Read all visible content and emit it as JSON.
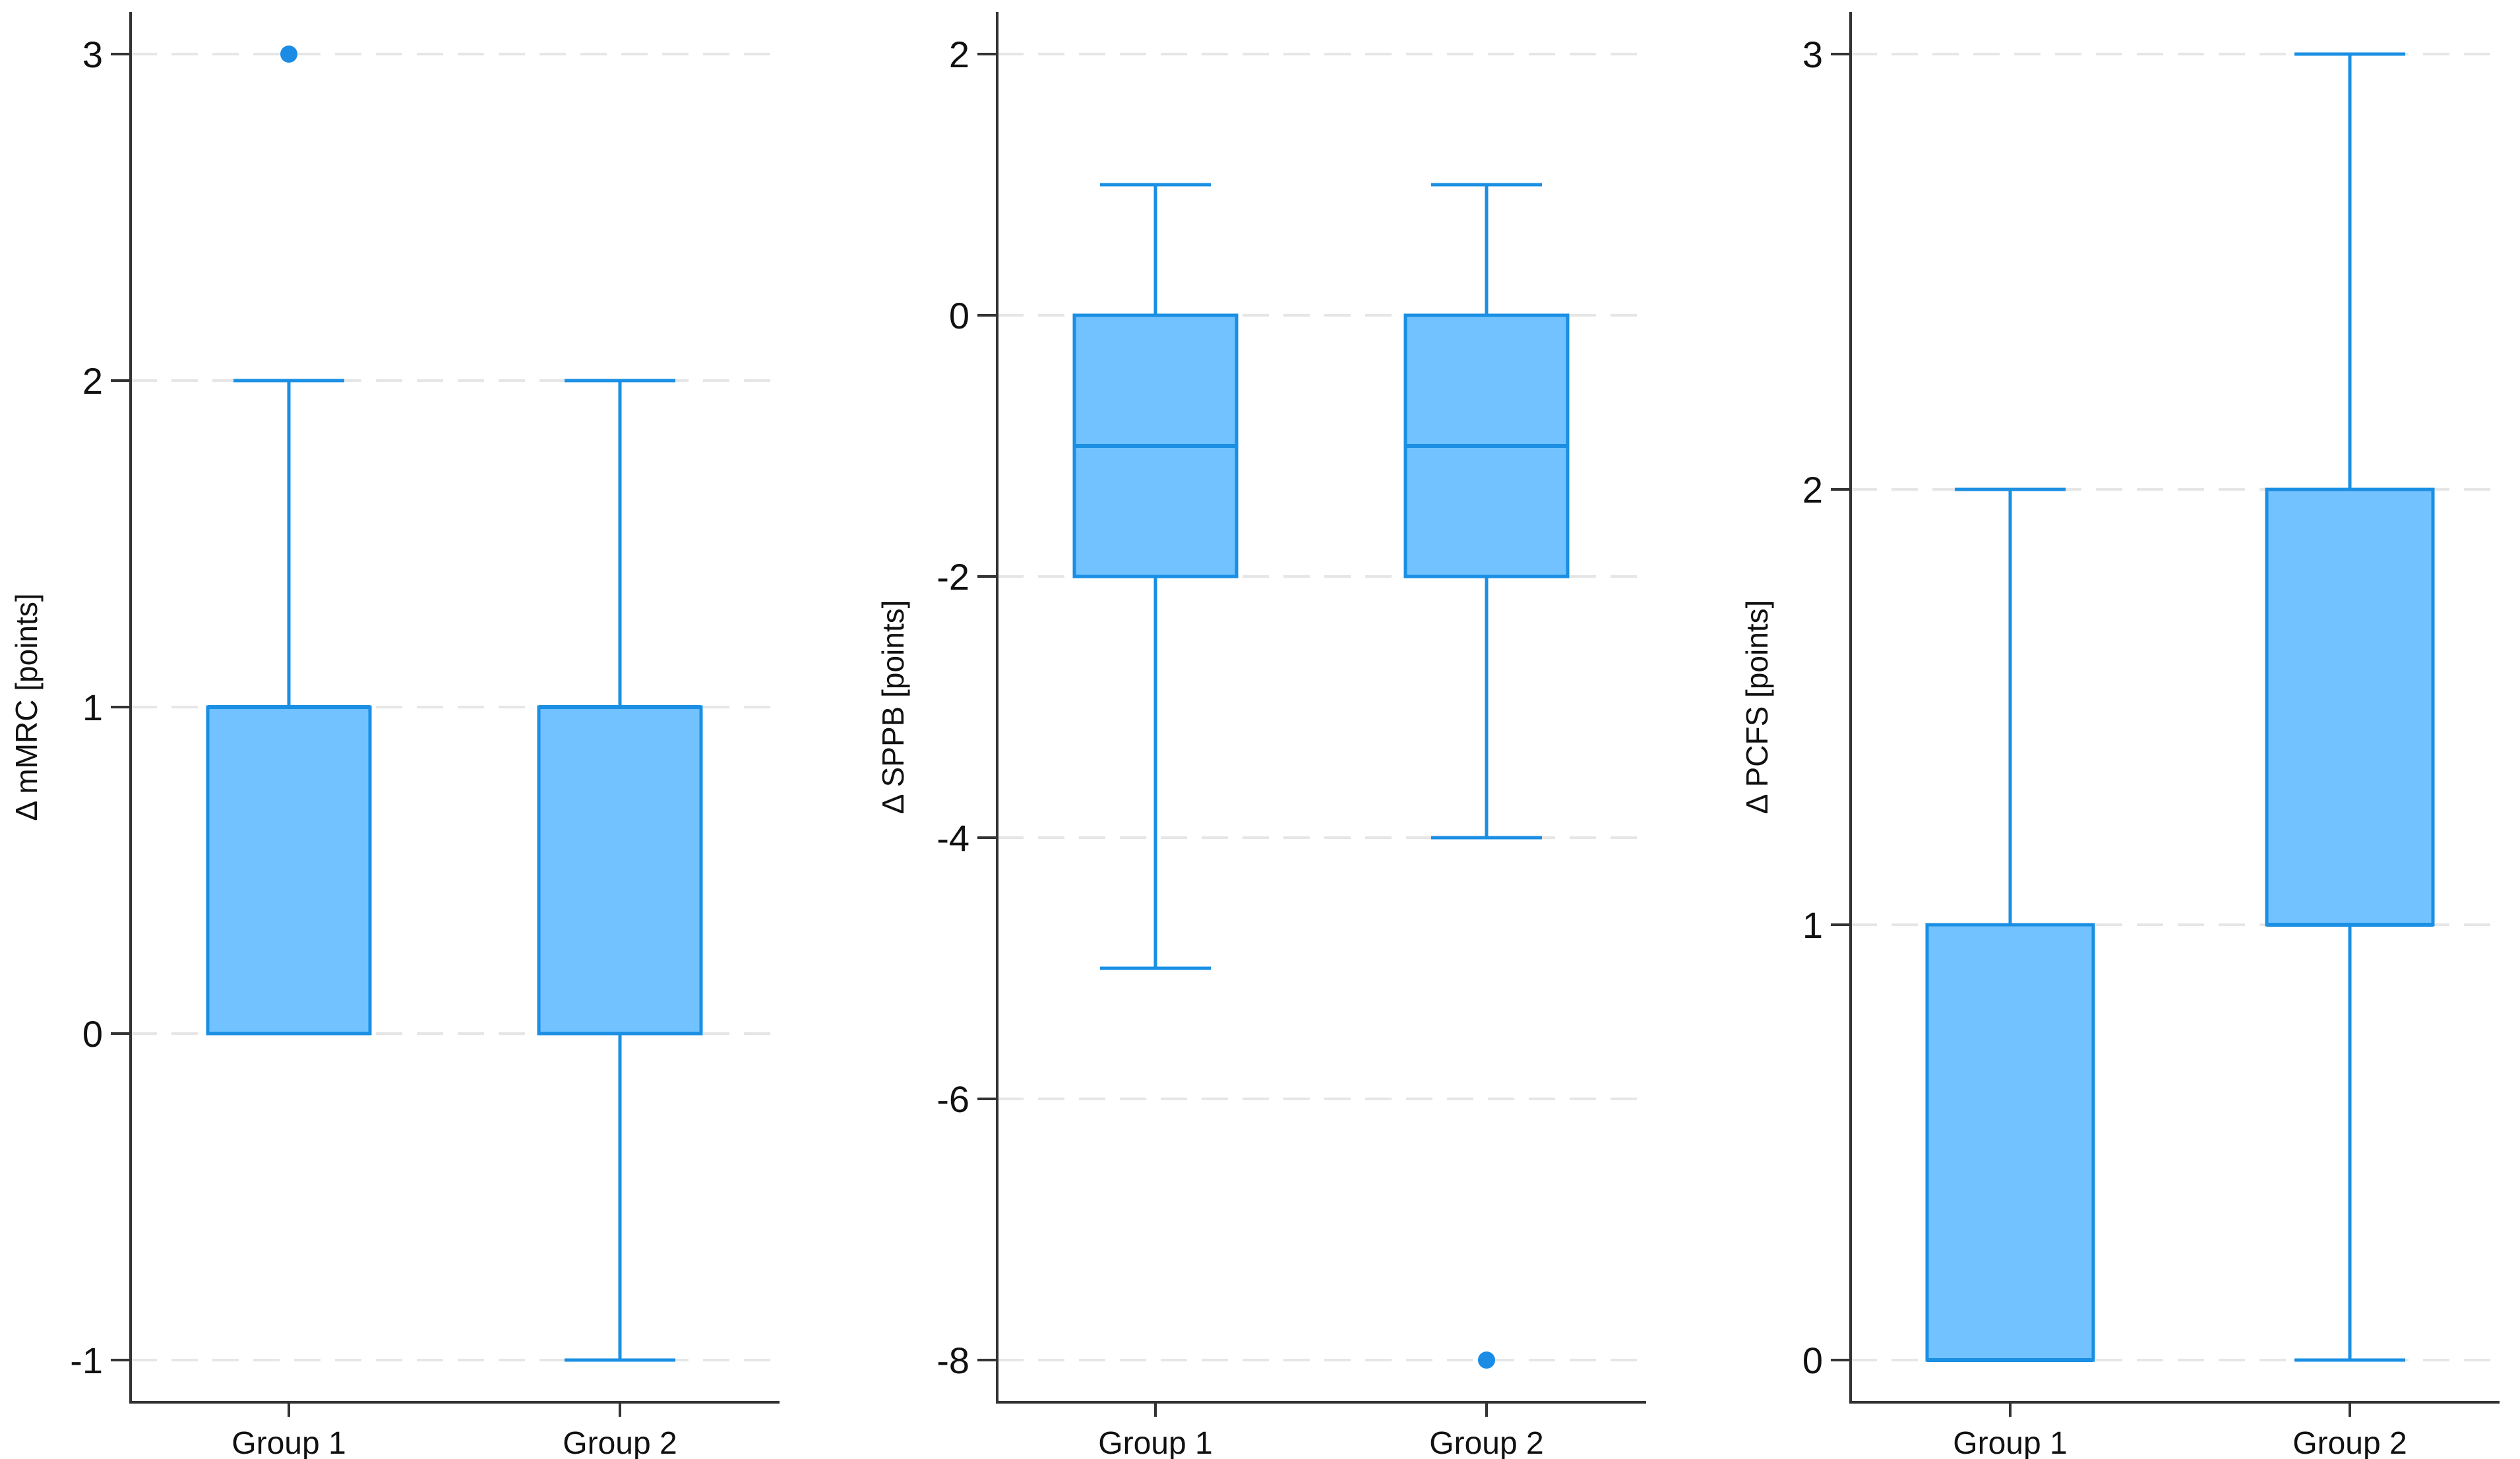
{
  "colors": {
    "box_fill": "#72c2ff",
    "box_stroke": "#1a8fe3",
    "outlier": "#1a8ce6",
    "gridline": "#e6e6e6",
    "axis": "#333333"
  },
  "chart_data": [
    {
      "type": "boxplot",
      "title": "",
      "xlabel": "",
      "ylabel": "Δ mMRC [points]",
      "ylim": [
        -1,
        3
      ],
      "yticks": [
        -1,
        0,
        1,
        2,
        3
      ],
      "ytick_labels": [
        "-1",
        "0",
        "1",
        "2",
        "3"
      ],
      "grid": true,
      "categories": [
        "Group 1",
        "Group 2"
      ],
      "boxes": [
        {
          "whisker_low": 0,
          "q1": 0,
          "median": 1,
          "q3": 1,
          "whisker_high": 2,
          "outliers": [
            3
          ]
        },
        {
          "whisker_low": -1,
          "q1": 0,
          "median": 1,
          "q3": 1,
          "whisker_high": 2,
          "outliers": []
        }
      ]
    },
    {
      "type": "boxplot",
      "title": "",
      "xlabel": "",
      "ylabel": "Δ SPPB [points]",
      "ylim": [
        -8,
        2
      ],
      "yticks": [
        -8,
        -6,
        -4,
        -2,
        0,
        2
      ],
      "ytick_labels": [
        "-8",
        "-6",
        "-4",
        "-2",
        "0",
        "2"
      ],
      "grid": true,
      "categories": [
        "Group 1",
        "Group 2"
      ],
      "boxes": [
        {
          "whisker_low": -5,
          "q1": -2,
          "median": -1,
          "q3": 0,
          "whisker_high": 1,
          "outliers": []
        },
        {
          "whisker_low": -4,
          "q1": -2,
          "median": -1,
          "q3": 0,
          "whisker_high": 1,
          "outliers": [
            -8
          ]
        }
      ]
    },
    {
      "type": "boxplot",
      "title": "",
      "xlabel": "",
      "ylabel": "Δ PCFS [points]",
      "ylim": [
        0,
        3
      ],
      "yticks": [
        0,
        1,
        2,
        3
      ],
      "ytick_labels": [
        "0",
        "1",
        "2",
        "3"
      ],
      "grid": true,
      "categories": [
        "Group 1",
        "Group 2"
      ],
      "boxes": [
        {
          "whisker_low": 0,
          "q1": 0,
          "median": 0,
          "q3": 1,
          "whisker_high": 2,
          "outliers": []
        },
        {
          "whisker_low": 0,
          "q1": 1,
          "median": 1,
          "q3": 2,
          "whisker_high": 3,
          "outliers": []
        }
      ]
    }
  ]
}
